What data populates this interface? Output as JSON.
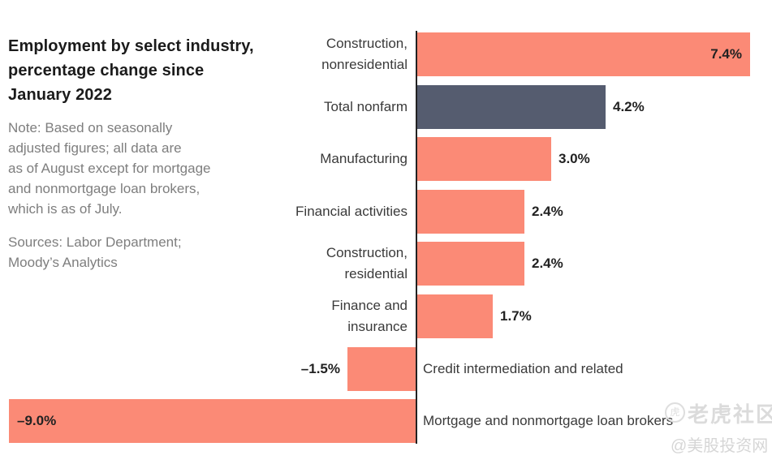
{
  "left_panel": {
    "title_lines": [
      "Employment by select industry,",
      "percentage change since",
      "January 2022"
    ],
    "note_lines": [
      "Note: Based on seasonally",
      "adjusted figures; all data are",
      "as of August except for mortgage",
      "and nonmortgage loan brokers,",
      "which is as of July."
    ],
    "sources_lines": [
      "Sources: Labor Department;",
      "Moody’s Analytics"
    ]
  },
  "chart_data": {
    "type": "bar",
    "orientation": "horizontal",
    "title": "Employment by select industry, percentage change since January 2022",
    "unit": "%",
    "xlim": [
      -9.2,
      7.9
    ],
    "grid": false,
    "legend": "none",
    "axis_color": "#222222",
    "colors": {
      "bar": "#FB8A76",
      "highlight": "#555C6F",
      "value_label": "#222222",
      "category_label": "#3a3a3a"
    },
    "bars": [
      {
        "category": "Construction, nonresidential",
        "category_lines": [
          "Construction,",
          "nonresidential"
        ],
        "value": 7.4,
        "value_label": "7.4%",
        "highlight": false,
        "value_placement": "inside"
      },
      {
        "category": "Total nonfarm",
        "category_lines": [
          "Total nonfarm"
        ],
        "value": 4.2,
        "value_label": "4.2%",
        "highlight": true,
        "value_placement": "outside"
      },
      {
        "category": "Manufacturing",
        "category_lines": [
          "Manufacturing"
        ],
        "value": 3.0,
        "value_label": "3.0%",
        "highlight": false,
        "value_placement": "outside"
      },
      {
        "category": "Financial activities",
        "category_lines": [
          "Financial activities"
        ],
        "value": 2.4,
        "value_label": "2.4%",
        "highlight": false,
        "value_placement": "outside"
      },
      {
        "category": "Construction, residential",
        "category_lines": [
          "Construction,",
          "residential"
        ],
        "value": 2.4,
        "value_label": "2.4%",
        "highlight": false,
        "value_placement": "outside"
      },
      {
        "category": "Finance and insurance",
        "category_lines": [
          "Finance and",
          "insurance"
        ],
        "value": 1.7,
        "value_label": "1.7%",
        "highlight": false,
        "value_placement": "outside"
      },
      {
        "category": "Credit intermediation and related",
        "category_lines": [
          "Credit intermediation and related"
        ],
        "value": -1.5,
        "value_label": "–1.5%",
        "highlight": false,
        "value_placement": "outside"
      },
      {
        "category": "Mortgage and nonmortgage loan brokers",
        "category_lines": [
          "Mortgage and nonmortgage loan brokers"
        ],
        "value": -9.0,
        "value_label": "–9.0%",
        "highlight": false,
        "value_placement": "inside"
      }
    ]
  },
  "watermark": {
    "logo_glyph": "虎",
    "community": "老虎社区",
    "handle": "@美股投资网"
  }
}
